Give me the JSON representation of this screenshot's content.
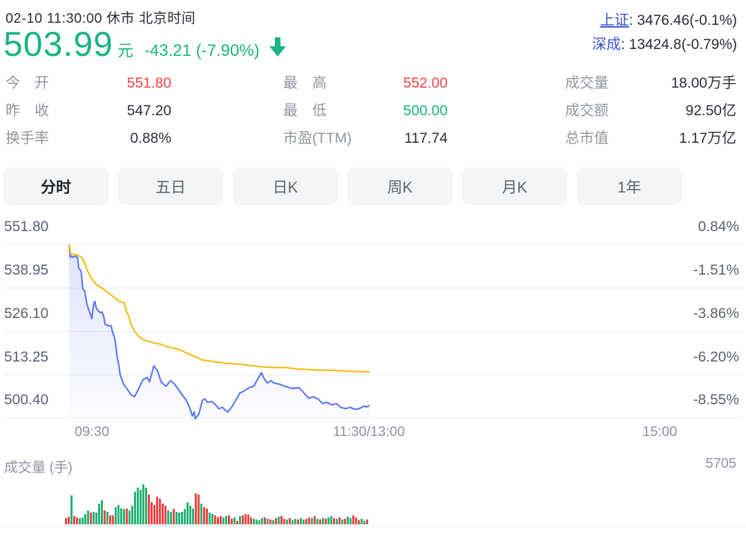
{
  "header": {
    "status_line": "02-10 11:30:00  休市  北京时间",
    "price": "503.99",
    "unit": "元",
    "change": "-43.21 (-7.90%)",
    "indices": [
      {
        "label": "上证",
        "value": ": 3476.46(-0.1%)",
        "underline": true
      },
      {
        "label": "深成",
        "value": ": 13424.8(-0.79%)",
        "underline": false
      }
    ]
  },
  "stats": {
    "col1": [
      {
        "label": "今　开",
        "value": "551.80",
        "color": "red"
      },
      {
        "label": "昨　收",
        "value": "547.20",
        "color": "dark"
      },
      {
        "label": "换手率",
        "value": "0.88%",
        "color": "dark"
      }
    ],
    "col2": [
      {
        "label": "最　高",
        "value": "552.00",
        "color": "red"
      },
      {
        "label": "最　低",
        "value": "500.00",
        "color": "green"
      },
      {
        "label": "市盈(TTM)",
        "value": "117.74",
        "color": "dark"
      }
    ],
    "col3": [
      {
        "label": "成交量",
        "value": "18.00万手",
        "color": "dark"
      },
      {
        "label": "成交额",
        "value": "92.50亿",
        "color": "dark"
      },
      {
        "label": "总市值",
        "value": "1.17万亿",
        "color": "dark"
      }
    ]
  },
  "tabs": [
    {
      "label": "分时",
      "active": true
    },
    {
      "label": "五日",
      "active": false
    },
    {
      "label": "日K",
      "active": false
    },
    {
      "label": "周K",
      "active": false
    },
    {
      "label": "月K",
      "active": false
    },
    {
      "label": "1年",
      "active": false
    }
  ],
  "chart_data": {
    "type": "line",
    "title": "分时 (intraday price vs average price)",
    "prev_close": 547.2,
    "open": 551.8,
    "high": 552.0,
    "low": 500.0,
    "last": 503.99,
    "ylim": [
      500.4,
      551.8
    ],
    "y_axis_left": [
      "551.80",
      "538.95",
      "526.10",
      "513.25",
      "500.40"
    ],
    "y_axis_right": [
      "0.84%",
      "-1.51%",
      "-3.86%",
      "-6.20%",
      "-8.55%"
    ],
    "x_ticks": [
      {
        "label": "09:30",
        "f": 0.038
      },
      {
        "label": "11:30/13:00",
        "f": 0.499
      },
      {
        "label": "15:00",
        "f": 0.983
      }
    ],
    "grid": true,
    "legend": "none",
    "series": [
      {
        "name": "price",
        "color": "#5b76f3",
        "fill": true,
        "points": [
          [
            0.0,
            551.8
          ],
          [
            0.002,
            547.9
          ],
          [
            0.004,
            548.3
          ],
          [
            0.007,
            547.9
          ],
          [
            0.01,
            548.3
          ],
          [
            0.014,
            547.9
          ],
          [
            0.016,
            544.8
          ],
          [
            0.02,
            543.8
          ],
          [
            0.023,
            538.5
          ],
          [
            0.026,
            537.9
          ],
          [
            0.03,
            533.8
          ],
          [
            0.032,
            532.8
          ],
          [
            0.036,
            530.7
          ],
          [
            0.038,
            529.7
          ],
          [
            0.039,
            531.5
          ],
          [
            0.041,
            534.2
          ],
          [
            0.043,
            534.8
          ],
          [
            0.045,
            533.0
          ],
          [
            0.048,
            532.1
          ],
          [
            0.052,
            531.5
          ],
          [
            0.055,
            531.7
          ],
          [
            0.058,
            530.1
          ],
          [
            0.06,
            528.0
          ],
          [
            0.066,
            527.6
          ],
          [
            0.07,
            527.6
          ],
          [
            0.072,
            526.0
          ],
          [
            0.076,
            523.9
          ],
          [
            0.078,
            521.3
          ],
          [
            0.08,
            518.4
          ],
          [
            0.083,
            515.8
          ],
          [
            0.085,
            513.1
          ],
          [
            0.089,
            511.1
          ],
          [
            0.091,
            510.2
          ],
          [
            0.095,
            509.2
          ],
          [
            0.099,
            508.2
          ],
          [
            0.104,
            507.0
          ],
          [
            0.109,
            506.6
          ],
          [
            0.113,
            507.9
          ],
          [
            0.123,
            511.6
          ],
          [
            0.13,
            512.3
          ],
          [
            0.134,
            511.0
          ],
          [
            0.141,
            515.7
          ],
          [
            0.147,
            514.3
          ],
          [
            0.153,
            511.0
          ],
          [
            0.161,
            509.6
          ],
          [
            0.169,
            511.3
          ],
          [
            0.176,
            510.2
          ],
          [
            0.186,
            507.6
          ],
          [
            0.195,
            505.5
          ],
          [
            0.201,
            503.1
          ],
          [
            0.205,
            500.8
          ],
          [
            0.208,
            502.0
          ],
          [
            0.21,
            500.0
          ],
          [
            0.216,
            501.4
          ],
          [
            0.222,
            505.5
          ],
          [
            0.226,
            505.9
          ],
          [
            0.23,
            504.9
          ],
          [
            0.238,
            505.1
          ],
          [
            0.244,
            504.1
          ],
          [
            0.249,
            503.0
          ],
          [
            0.255,
            503.4
          ],
          [
            0.261,
            502.4
          ],
          [
            0.264,
            502.0
          ],
          [
            0.272,
            503.8
          ],
          [
            0.284,
            507.6
          ],
          [
            0.291,
            508.2
          ],
          [
            0.299,
            509.2
          ],
          [
            0.307,
            509.6
          ],
          [
            0.32,
            513.7
          ],
          [
            0.324,
            512.1
          ],
          [
            0.33,
            510.6
          ],
          [
            0.336,
            511.3
          ],
          [
            0.341,
            510.6
          ],
          [
            0.351,
            510.2
          ],
          [
            0.36,
            509.6
          ],
          [
            0.371,
            509.0
          ],
          [
            0.383,
            509.2
          ],
          [
            0.391,
            507.6
          ],
          [
            0.399,
            506.1
          ],
          [
            0.406,
            506.5
          ],
          [
            0.414,
            505.9
          ],
          [
            0.422,
            504.5
          ],
          [
            0.429,
            504.9
          ],
          [
            0.437,
            504.1
          ],
          [
            0.445,
            504.5
          ],
          [
            0.452,
            503.4
          ],
          [
            0.46,
            503.0
          ],
          [
            0.468,
            503.4
          ],
          [
            0.475,
            502.8
          ],
          [
            0.483,
            503.0
          ],
          [
            0.491,
            503.8
          ],
          [
            0.496,
            503.5
          ],
          [
            0.5,
            503.99
          ]
        ]
      },
      {
        "name": "avg_price",
        "color": "#f8ba12",
        "fill": false,
        "points": [
          [
            0.0,
            551.8
          ],
          [
            0.003,
            548.9
          ],
          [
            0.011,
            548.7
          ],
          [
            0.02,
            548.1
          ],
          [
            0.025,
            546.5
          ],
          [
            0.031,
            543.8
          ],
          [
            0.038,
            541.4
          ],
          [
            0.046,
            539.7
          ],
          [
            0.054,
            538.9
          ],
          [
            0.061,
            537.9
          ],
          [
            0.069,
            536.9
          ],
          [
            0.077,
            535.8
          ],
          [
            0.084,
            534.8
          ],
          [
            0.092,
            534.4
          ],
          [
            0.095,
            532.1
          ],
          [
            0.1,
            530.1
          ],
          [
            0.103,
            528.0
          ],
          [
            0.109,
            526.0
          ],
          [
            0.115,
            524.6
          ],
          [
            0.123,
            523.5
          ],
          [
            0.13,
            523.1
          ],
          [
            0.141,
            522.5
          ],
          [
            0.153,
            522.1
          ],
          [
            0.164,
            521.3
          ],
          [
            0.176,
            520.9
          ],
          [
            0.187,
            520.3
          ],
          [
            0.199,
            519.2
          ],
          [
            0.21,
            518.4
          ],
          [
            0.222,
            517.4
          ],
          [
            0.233,
            517.2
          ],
          [
            0.245,
            516.8
          ],
          [
            0.256,
            516.6
          ],
          [
            0.264,
            516.4
          ],
          [
            0.284,
            516.2
          ],
          [
            0.302,
            515.8
          ],
          [
            0.322,
            515.4
          ],
          [
            0.341,
            515.2
          ],
          [
            0.36,
            515.2
          ],
          [
            0.379,
            514.8
          ],
          [
            0.399,
            514.6
          ],
          [
            0.417,
            514.4
          ],
          [
            0.437,
            514.4
          ],
          [
            0.456,
            514.2
          ],
          [
            0.475,
            514.0
          ],
          [
            0.491,
            514.0
          ],
          [
            0.5,
            513.9
          ]
        ]
      }
    ],
    "volume_pane": {
      "label": "成交量 (手)",
      "max_label": "5705",
      "max_value": 5705,
      "bars": [
        [
          886,
          "r"
        ],
        [
          1082,
          "r"
        ],
        [
          4133,
          "g"
        ],
        [
          1181,
          "r"
        ],
        [
          984,
          "r"
        ],
        [
          886,
          "g"
        ],
        [
          984,
          "g"
        ],
        [
          1476,
          "g"
        ],
        [
          1968,
          "g"
        ],
        [
          1673,
          "r"
        ],
        [
          1771,
          "g"
        ],
        [
          1673,
          "g"
        ],
        [
          2952,
          "g"
        ],
        [
          3444,
          "g"
        ],
        [
          1968,
          "r"
        ],
        [
          1771,
          "g"
        ],
        [
          1279,
          "r"
        ],
        [
          1279,
          "r"
        ],
        [
          2460,
          "g"
        ],
        [
          2755,
          "g"
        ],
        [
          2263,
          "g"
        ],
        [
          2165,
          "g"
        ],
        [
          2263,
          "r"
        ],
        [
          1968,
          "g"
        ],
        [
          2657,
          "g"
        ],
        [
          4625,
          "g"
        ],
        [
          5215,
          "g"
        ],
        [
          4920,
          "g"
        ],
        [
          5705,
          "g"
        ],
        [
          5215,
          "g"
        ],
        [
          4231,
          "r"
        ],
        [
          3149,
          "r"
        ],
        [
          2755,
          "r"
        ],
        [
          3936,
          "r"
        ],
        [
          3641,
          "r"
        ],
        [
          2952,
          "r"
        ],
        [
          2657,
          "r"
        ],
        [
          1968,
          "g"
        ],
        [
          1771,
          "g"
        ],
        [
          2165,
          "r"
        ],
        [
          1771,
          "g"
        ],
        [
          1673,
          "g"
        ],
        [
          1771,
          "g"
        ],
        [
          2165,
          "g"
        ],
        [
          3149,
          "g"
        ],
        [
          2657,
          "g"
        ],
        [
          2263,
          "g"
        ],
        [
          4428,
          "r"
        ],
        [
          4231,
          "r"
        ],
        [
          2952,
          "g"
        ],
        [
          2460,
          "r"
        ],
        [
          2263,
          "r"
        ],
        [
          1673,
          "g"
        ],
        [
          1476,
          "g"
        ],
        [
          1279,
          "r"
        ],
        [
          984,
          "r"
        ],
        [
          1181,
          "r"
        ],
        [
          984,
          "g"
        ],
        [
          1181,
          "g"
        ],
        [
          1279,
          "r"
        ],
        [
          787,
          "r"
        ],
        [
          984,
          "g"
        ],
        [
          492,
          "r"
        ],
        [
          1181,
          "g"
        ],
        [
          1279,
          "r"
        ],
        [
          1476,
          "r"
        ],
        [
          1378,
          "r"
        ],
        [
          984,
          "r"
        ],
        [
          787,
          "g"
        ],
        [
          689,
          "g"
        ],
        [
          590,
          "g"
        ],
        [
          886,
          "g"
        ],
        [
          984,
          "r"
        ],
        [
          787,
          "g"
        ],
        [
          689,
          "r"
        ],
        [
          590,
          "g"
        ],
        [
          886,
          "r"
        ],
        [
          1082,
          "g"
        ],
        [
          1181,
          "r"
        ],
        [
          787,
          "r"
        ],
        [
          689,
          "g"
        ],
        [
          886,
          "r"
        ],
        [
          590,
          "g"
        ],
        [
          787,
          "g"
        ],
        [
          689,
          "r"
        ],
        [
          886,
          "g"
        ],
        [
          689,
          "g"
        ],
        [
          787,
          "r"
        ],
        [
          984,
          "r"
        ],
        [
          886,
          "g"
        ],
        [
          1181,
          "r"
        ],
        [
          787,
          "g"
        ],
        [
          689,
          "r"
        ],
        [
          886,
          "g"
        ],
        [
          787,
          "r"
        ],
        [
          984,
          "g"
        ],
        [
          1181,
          "g"
        ],
        [
          886,
          "r"
        ],
        [
          787,
          "g"
        ],
        [
          984,
          "r"
        ],
        [
          689,
          "g"
        ],
        [
          787,
          "r"
        ],
        [
          1082,
          "g"
        ],
        [
          886,
          "g"
        ],
        [
          1279,
          "r"
        ],
        [
          984,
          "r"
        ],
        [
          590,
          "r"
        ],
        [
          787,
          "g"
        ],
        [
          492,
          "g"
        ],
        [
          689,
          "r"
        ]
      ]
    }
  },
  "colors": {
    "down_green": "#19b484",
    "up_red": "#fb4242",
    "index_link_blue": "#3a54d6",
    "price_line_blue": "#5b76f3",
    "avg_line_yellow": "#f8ba12",
    "vol_green": "#23b274",
    "vol_red": "#ef4343",
    "grid": "#ececf0",
    "axis_text": "#5a6170",
    "muted_text": "#8d93a0"
  }
}
